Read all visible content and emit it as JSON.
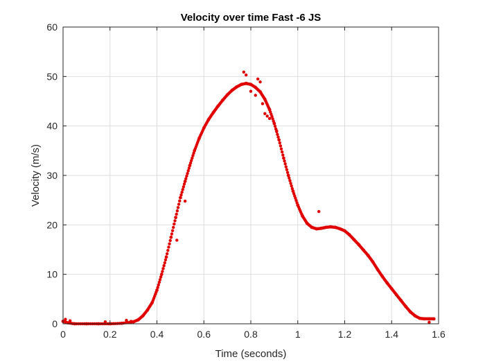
{
  "chart_data": {
    "type": "scatter",
    "title": "Velocity over time Fast -6 JS",
    "xlabel": "Time (seconds)",
    "ylabel": "Velocity (m/s)",
    "xlim": [
      0,
      1.6
    ],
    "ylim": [
      0,
      60
    ],
    "x_ticks": [
      "0",
      "0.2",
      "0.4",
      "0.6",
      "0.8",
      "1",
      "1.2",
      "1.4",
      "1.6"
    ],
    "y_ticks": [
      "0",
      "10",
      "20",
      "30",
      "40",
      "50",
      "60"
    ],
    "grid": true,
    "marker_color": "#e00000",
    "series": [
      {
        "x": [
          0.0,
          0.02,
          0.05,
          0.1,
          0.15,
          0.2,
          0.25,
          0.3,
          0.32,
          0.34,
          0.36,
          0.38,
          0.4,
          0.42,
          0.44,
          0.46,
          0.48,
          0.5,
          0.52,
          0.54,
          0.56,
          0.58,
          0.6,
          0.62,
          0.64,
          0.66,
          0.68,
          0.7,
          0.72,
          0.74,
          0.76,
          0.78,
          0.8,
          0.82,
          0.84,
          0.86,
          0.88,
          0.9,
          0.92,
          0.94,
          0.96,
          0.98,
          1.0,
          1.02,
          1.04,
          1.06,
          1.08,
          1.1,
          1.12,
          1.14,
          1.16,
          1.18,
          1.2,
          1.22,
          1.24,
          1.26,
          1.28,
          1.3,
          1.32,
          1.34,
          1.36,
          1.38,
          1.4,
          1.42,
          1.44,
          1.46,
          1.48,
          1.5,
          1.52,
          1.54,
          1.56,
          1.58
        ],
        "y": [
          0.5,
          0.2,
          0.0,
          0.0,
          0.0,
          0.0,
          0.1,
          0.4,
          0.8,
          1.6,
          2.8,
          4.3,
          6.8,
          10.0,
          13.5,
          17.5,
          21.5,
          25.5,
          28.8,
          32.0,
          35.0,
          37.5,
          39.6,
          41.3,
          42.7,
          44.0,
          45.2,
          46.3,
          47.2,
          47.9,
          48.4,
          48.6,
          48.4,
          47.8,
          46.9,
          45.4,
          43.3,
          40.5,
          37.2,
          33.5,
          30.0,
          26.8,
          24.0,
          21.8,
          20.3,
          19.5,
          19.2,
          19.3,
          19.5,
          19.6,
          19.5,
          19.2,
          18.8,
          18.0,
          17.0,
          16.0,
          14.9,
          13.8,
          12.5,
          11.0,
          9.6,
          8.3,
          7.1,
          5.9,
          4.7,
          3.5,
          2.4,
          1.6,
          1.1,
          1.0,
          1.0,
          1.0
        ]
      }
    ],
    "outliers": {
      "x": [
        0.01,
        0.03,
        0.18,
        0.27,
        0.29,
        0.485,
        0.52,
        0.77,
        0.78,
        0.8,
        0.82,
        0.83,
        0.84,
        0.85,
        0.86,
        0.87,
        0.88,
        0.91,
        1.09,
        1.56
      ],
      "y": [
        0.9,
        0.6,
        0.4,
        0.7,
        0.5,
        16.9,
        24.8,
        50.9,
        50.3,
        47.0,
        46.2,
        49.5,
        48.9,
        44.5,
        42.5,
        42.0,
        41.5,
        39.0,
        22.7,
        0.3
      ]
    }
  }
}
